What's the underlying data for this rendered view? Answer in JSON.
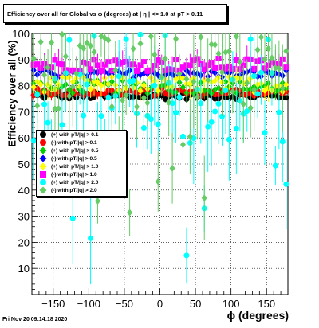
{
  "chart_data": {
    "type": "scatter",
    "title": "Efficiency over all for Global vs ϕ (degrees) at | η | <= 1.0 at pT > 0.11",
    "xlabel": "ϕ (degrees)",
    "ylabel": "Efficiency over all (%)",
    "xlim": [
      -180,
      180
    ],
    "ylim": [
      0,
      100
    ],
    "xticks": [
      -150,
      -100,
      -50,
      0,
      50,
      100,
      150
    ],
    "yticks": [
      10,
      20,
      30,
      40,
      50,
      60,
      70,
      80,
      90,
      100
    ],
    "xtick_labels": [
      "−150",
      "−100",
      "−50",
      "0",
      "50",
      "100",
      "150"
    ],
    "ytick_labels": [
      "10",
      "20",
      "30",
      "40",
      "50",
      "60",
      "70",
      "80",
      "90",
      "100"
    ],
    "grid": true,
    "legend_position": "left-middle",
    "series": [
      {
        "name": "(+) with pT/|q| > 0.1",
        "color": "#000000",
        "marker": "circle",
        "center": 76,
        "spread": 1.2,
        "err": 1.2
      },
      {
        "name": "(-) with pT/|q| > 0.1",
        "color": "#ff0000",
        "marker": "circle",
        "center": 77.5,
        "spread": 1.5,
        "err": 1.5
      },
      {
        "name": "(+) with pT/|q| > 0.5",
        "color": "#00cc00",
        "marker": "diamond",
        "center": 79.5,
        "spread": 2.5,
        "err": 3
      },
      {
        "name": "(-) with pT/|q| > 0.5",
        "color": "#0000ff",
        "marker": "diamond",
        "center": 84.5,
        "spread": 1.5,
        "err": 2
      },
      {
        "name": "(+) with pT/|q| > 1.0",
        "color": "#ffff00",
        "marker": "diamond",
        "center": 80.5,
        "spread": 3,
        "err": 4
      },
      {
        "name": "(-) with pT/|q| > 1.0",
        "color": "#ff00ff",
        "marker": "square",
        "center": 88,
        "spread": 2.5,
        "err": 4
      },
      {
        "name": "(+) with pT/|q| > 2.0",
        "color": "#00ffff",
        "marker": "circle",
        "center": 72,
        "spread": 14,
        "err": 12
      },
      {
        "name": "(-) with pT/|q| > 2.0",
        "color": "#66cc66",
        "marker": "diamond",
        "center": 85,
        "spread": 14,
        "err": 12
      }
    ]
  },
  "header": {
    "title": "Efficiency over all for Global vs ϕ (degrees) at | η | <= 1.0 at pT > 0.11"
  },
  "footer": {
    "timestamp": "Fri Nov 20 09:14:18 2020"
  }
}
